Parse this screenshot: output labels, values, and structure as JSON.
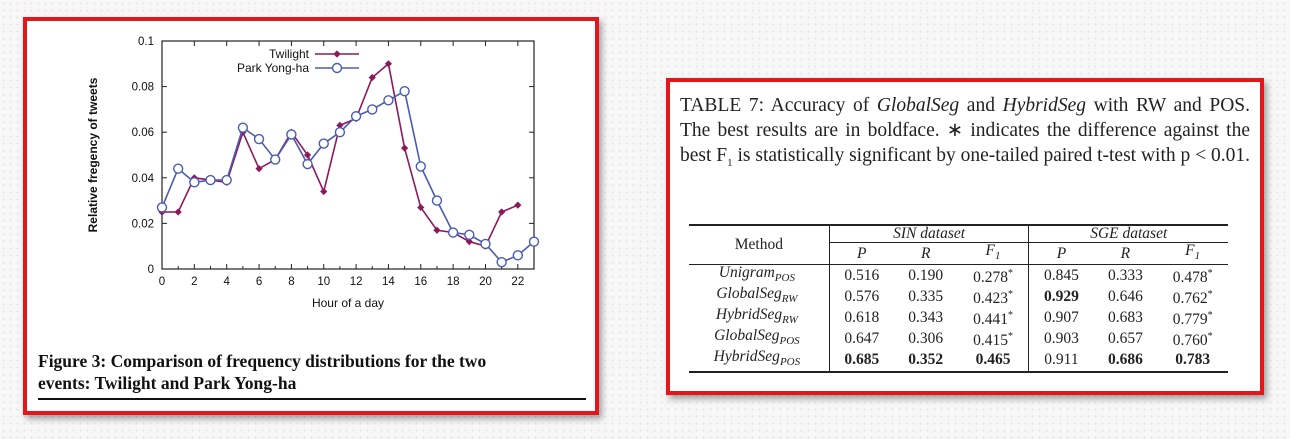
{
  "chart_data": {
    "type": "line",
    "xlabel": "Hour of a day",
    "ylabel": "Relative fregency of tweets",
    "xlim": [
      0,
      23
    ],
    "ylim": [
      0,
      0.1
    ],
    "x_ticks": [
      "0",
      "2",
      "4",
      "6",
      "8",
      "10",
      "12",
      "14",
      "16",
      "18",
      "20",
      "22"
    ],
    "y_ticks": [
      "0",
      "0.02",
      "0.04",
      "0.06",
      "0.08",
      "0.1"
    ],
    "legend_position": "top-center",
    "x": [
      0,
      1,
      2,
      3,
      4,
      5,
      6,
      7,
      8,
      9,
      10,
      11,
      12,
      13,
      14,
      15,
      16,
      17,
      18,
      19,
      20,
      21,
      22,
      23
    ],
    "series": [
      {
        "name": "Twilight",
        "color": "#8b1a5b",
        "marker": "diamond",
        "values": [
          0.025,
          0.025,
          0.04,
          0.039,
          0.038,
          0.06,
          0.044,
          0.048,
          0.06,
          0.05,
          0.034,
          0.063,
          0.066,
          0.084,
          0.09,
          0.053,
          0.027,
          0.017,
          0.016,
          0.012,
          0.01,
          0.025,
          0.028,
          null
        ]
      },
      {
        "name": "Park Yong-ha",
        "color": "#4a5bb5",
        "marker": "circle",
        "values": [
          0.027,
          0.044,
          0.038,
          0.039,
          0.039,
          0.062,
          0.057,
          0.048,
          0.059,
          0.046,
          0.055,
          0.06,
          0.067,
          0.07,
          0.074,
          0.078,
          0.045,
          0.03,
          0.016,
          0.015,
          0.011,
          0.003,
          0.006,
          0.012
        ]
      }
    ]
  },
  "figure_caption": {
    "line1": "Figure 3:  Comparison of frequency distributions for the two",
    "line2": "events: Twilight and Park Yong-ha"
  },
  "table_caption": {
    "t1": "TABLE 7: Accuracy of ",
    "t2": "GlobalSeg",
    "t3": " and ",
    "t4": "HybridSeg",
    "t5": " with RW and POS. The best results are in boldface. ∗ indicates the difference against the best F",
    "t5sub": "1",
    "t6": " is statistically significant by one-tailed paired t-test with p < 0.01."
  },
  "table": {
    "method_header": "Method",
    "group1": "SIN dataset",
    "group2": "SGE dataset",
    "cols": [
      "P",
      "R",
      "F",
      "P",
      "R",
      "F"
    ],
    "f_sub": "1",
    "star": "*",
    "rows": [
      {
        "name": "Unigram",
        "sub": "POS",
        "vals": [
          "0.516",
          "0.190",
          "0.278",
          "0.845",
          "0.333",
          "0.478"
        ],
        "star": [
          false,
          false,
          true,
          false,
          false,
          true
        ],
        "bold": [
          false,
          false,
          false,
          false,
          false,
          false
        ]
      },
      {
        "name": "GlobalSeg",
        "sub": "RW",
        "vals": [
          "0.576",
          "0.335",
          "0.423",
          "0.929",
          "0.646",
          "0.762"
        ],
        "star": [
          false,
          false,
          true,
          false,
          false,
          true
        ],
        "bold": [
          false,
          false,
          false,
          true,
          false,
          false
        ]
      },
      {
        "name": "HybridSeg",
        "sub": "RW",
        "vals": [
          "0.618",
          "0.343",
          "0.441",
          "0.907",
          "0.683",
          "0.779"
        ],
        "star": [
          false,
          false,
          true,
          false,
          false,
          true
        ],
        "bold": [
          false,
          false,
          false,
          false,
          false,
          false
        ]
      },
      {
        "name": "GlobalSeg",
        "sub": "POS",
        "vals": [
          "0.647",
          "0.306",
          "0.415",
          "0.903",
          "0.657",
          "0.760"
        ],
        "star": [
          false,
          false,
          true,
          false,
          false,
          true
        ],
        "bold": [
          false,
          false,
          false,
          false,
          false,
          false
        ]
      },
      {
        "name": "HybridSeg",
        "sub": "POS",
        "vals": [
          "0.685",
          "0.352",
          "0.465",
          "0.911",
          "0.686",
          "0.783"
        ],
        "star": [
          false,
          false,
          false,
          false,
          false,
          false
        ],
        "bold": [
          true,
          true,
          true,
          false,
          true,
          true
        ]
      }
    ]
  }
}
